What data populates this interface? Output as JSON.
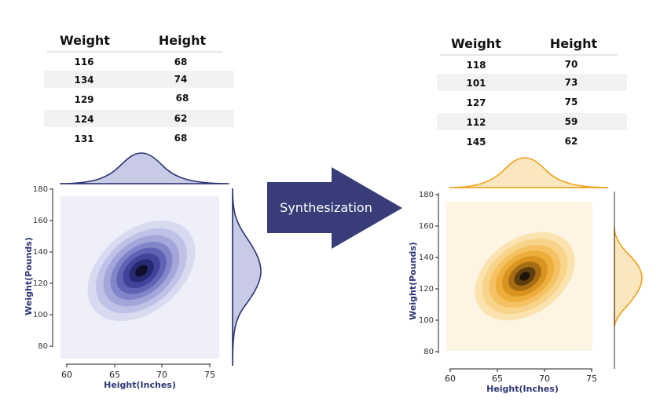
{
  "arrow_label": "Synthesization",
  "colors": {
    "real_theme": "#2e3575",
    "synthetic_theme": "#f0a11c",
    "arrow": "#383d7a"
  },
  "real": {
    "table": {
      "headers": [
        "Weight",
        "Height"
      ],
      "rows": [
        [
          "116",
          "68"
        ],
        [
          "134",
          "74"
        ],
        [
          "129",
          "68"
        ],
        [
          "124",
          "62"
        ],
        [
          "131",
          "68"
        ]
      ]
    },
    "plot": {
      "xlabel": "Height(Inches)",
      "ylabel": "Weight(Pounds)",
      "xticks": [
        "60",
        "65",
        "70",
        "75"
      ],
      "yticks": [
        "80",
        "100",
        "120",
        "140",
        "160",
        "180"
      ]
    }
  },
  "synthetic": {
    "table": {
      "headers": [
        "Weight",
        "Height"
      ],
      "rows": [
        [
          "118",
          "70"
        ],
        [
          "101",
          "73"
        ],
        [
          "127",
          "75"
        ],
        [
          "112",
          "59"
        ],
        [
          "145",
          "62"
        ]
      ]
    },
    "plot": {
      "xlabel": "Height(Inches)",
      "ylabel": "Weight(Pounds)",
      "xticks": [
        "60",
        "65",
        "70",
        "75"
      ],
      "yticks": [
        "80",
        "100",
        "120",
        "140",
        "160",
        "180"
      ]
    }
  }
}
